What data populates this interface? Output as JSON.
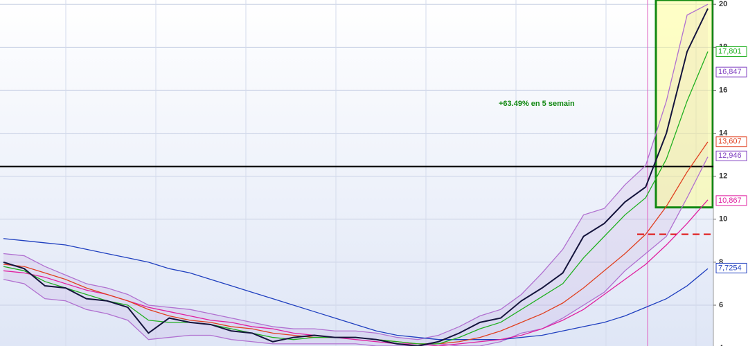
{
  "chart_data": {
    "type": "line",
    "annotation": "+63.49% en 5 semain",
    "categories": [
      null,
      null,
      null,
      null,
      null,
      null,
      null,
      null,
      null,
      null,
      null,
      null,
      null,
      null,
      null,
      null,
      null,
      null,
      null,
      null,
      null,
      null,
      null,
      null,
      null,
      null,
      null,
      null,
      null,
      null,
      null,
      null,
      null,
      null,
      null
    ],
    "series": [
      {
        "color": "#b070d0",
        "band": "upper",
        "values": [
          8.4,
          8.3,
          7.8,
          7.4,
          7.0,
          6.8,
          6.5,
          6.0,
          5.9,
          5.8,
          5.6,
          5.4,
          5.2,
          5.0,
          4.9,
          4.9,
          4.8,
          4.8,
          4.7,
          4.5,
          4.4,
          4.6,
          5.0,
          5.5,
          5.8,
          6.5,
          7.5,
          8.6,
          10.2,
          10.5,
          11.6,
          12.5,
          15.5,
          19.5,
          20.0
        ]
      },
      {
        "color": "#b070d0",
        "band": "lower",
        "values": [
          7.2,
          7.0,
          6.3,
          6.2,
          5.8,
          5.6,
          5.3,
          4.4,
          4.5,
          4.6,
          4.6,
          4.4,
          4.3,
          4.2,
          4.2,
          4.2,
          4.2,
          4.2,
          4.1,
          4.1,
          4.1,
          4.2,
          4.1,
          4.1,
          4.3,
          4.7,
          4.9,
          5.4,
          6.0,
          6.6,
          7.6,
          8.4,
          9.2,
          11.0,
          12.9
        ]
      },
      {
        "color": "#1f3fbf",
        "values": [
          9.1,
          9.0,
          8.9,
          8.8,
          8.6,
          8.4,
          8.2,
          8.0,
          7.7,
          7.5,
          7.2,
          6.9,
          6.6,
          6.3,
          6.0,
          5.7,
          5.4,
          5.1,
          4.8,
          4.6,
          4.5,
          4.4,
          4.4,
          4.4,
          4.4,
          4.5,
          4.6,
          4.8,
          5.0,
          5.2,
          5.5,
          5.9,
          6.3,
          6.9,
          7.7
        ]
      },
      {
        "color": "#e020a0",
        "values": [
          7.6,
          7.5,
          7.3,
          7.0,
          6.7,
          6.5,
          6.2,
          5.9,
          5.7,
          5.5,
          5.3,
          5.2,
          5.0,
          4.9,
          4.7,
          4.6,
          4.5,
          4.4,
          4.3,
          4.2,
          4.2,
          4.1,
          4.2,
          4.3,
          4.4,
          4.6,
          4.9,
          5.3,
          5.8,
          6.5,
          7.2,
          7.9,
          8.8,
          9.8,
          10.9
        ]
      },
      {
        "color": "#e04020",
        "values": [
          7.9,
          7.8,
          7.5,
          7.2,
          6.8,
          6.5,
          6.2,
          5.8,
          5.5,
          5.3,
          5.2,
          5.0,
          4.9,
          4.7,
          4.6,
          4.5,
          4.5,
          4.5,
          4.4,
          4.3,
          4.2,
          4.2,
          4.3,
          4.5,
          4.8,
          5.2,
          5.6,
          6.1,
          6.8,
          7.6,
          8.4,
          9.3,
          10.6,
          12.2,
          13.6
        ]
      },
      {
        "color": "#20b020",
        "values": [
          7.8,
          7.6,
          7.1,
          6.8,
          6.5,
          6.2,
          6.0,
          5.3,
          5.2,
          5.2,
          5.1,
          4.9,
          4.7,
          4.5,
          4.4,
          4.5,
          4.5,
          4.5,
          4.4,
          4.3,
          4.2,
          4.2,
          4.5,
          4.9,
          5.2,
          5.8,
          6.4,
          7.0,
          8.2,
          9.2,
          10.2,
          11.0,
          12.8,
          15.5,
          17.8
        ]
      },
      {
        "color": "#14143c",
        "values": [
          8.0,
          7.7,
          6.9,
          6.8,
          6.3,
          6.2,
          5.9,
          4.7,
          5.4,
          5.2,
          5.1,
          4.8,
          4.7,
          4.3,
          4.5,
          4.6,
          4.5,
          4.5,
          4.4,
          4.2,
          4.1,
          4.3,
          4.7,
          5.2,
          5.4,
          6.2,
          6.8,
          7.5,
          9.2,
          9.8,
          10.8,
          11.5,
          14.0,
          17.8,
          19.8
        ]
      }
    ],
    "hlines": [
      {
        "value": 12.45,
        "color": "#000000"
      },
      {
        "value": 9.3,
        "color": "#e01010",
        "dashed": true
      }
    ],
    "box_ylim": [
      10.55,
      20.2
    ],
    "price_labels": [
      {
        "value": 17.801,
        "label": "17,801",
        "color": "#20b020"
      },
      {
        "value": 16.847,
        "label": "16,847",
        "color": "#8040c0"
      },
      {
        "value": 13.607,
        "label": "13,607",
        "color": "#e04020"
      },
      {
        "value": 12.946,
        "label": "12,946",
        "color": "#8040c0"
      },
      {
        "value": 10.867,
        "label": "10,867",
        "color": "#e020a0"
      },
      {
        "value": 7.7254,
        "label": "7,7254",
        "color": "#1f3fbf"
      }
    ],
    "ylim": [
      4.1,
      20.2
    ],
    "yticks": [
      4,
      6,
      8,
      10,
      12,
      14,
      16,
      18,
      20
    ],
    "grid": true
  }
}
